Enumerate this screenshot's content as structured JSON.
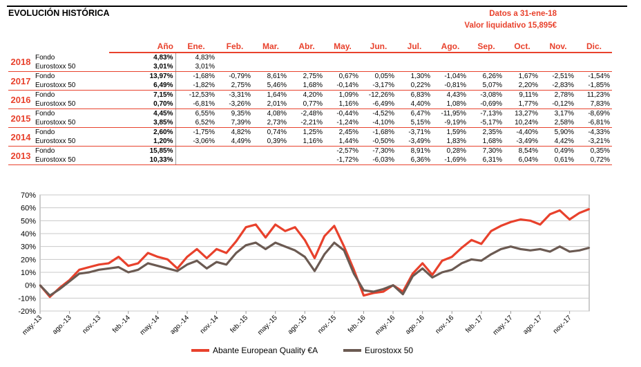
{
  "header": {
    "title": "EVOLUCIÓN HISTÓRICA",
    "date_line": "Datos a 31-ene-18",
    "value_line": "Valor liquidativo 15,895€"
  },
  "table": {
    "columns": [
      "Año",
      "Ene.",
      "Feb.",
      "Mar.",
      "Abr.",
      "May.",
      "Jun.",
      "Jul.",
      "Ago.",
      "Sep.",
      "Oct.",
      "Nov.",
      "Dic."
    ],
    "years": [
      {
        "year": "2018",
        "rows": [
          {
            "label": "Fondo",
            "ano": "4,83%",
            "months": [
              "4,83%",
              "",
              "",
              "",
              "",
              "",
              "",
              "",
              "",
              "",
              "",
              ""
            ]
          },
          {
            "label": "Eurostoxx 50",
            "ano": "3,01%",
            "months": [
              "3,01%",
              "",
              "",
              "",
              "",
              "",
              "",
              "",
              "",
              "",
              "",
              ""
            ]
          }
        ]
      },
      {
        "year": "2017",
        "rows": [
          {
            "label": "Fondo",
            "ano": "13,97%",
            "months": [
              "-1,68%",
              "-0,79%",
              "8,61%",
              "2,75%",
              "0,67%",
              "0,05%",
              "1,30%",
              "-1,04%",
              "6,26%",
              "1,67%",
              "-2,51%",
              "-1,54%"
            ]
          },
          {
            "label": "Eurostoxx 50",
            "ano": "6,49%",
            "months": [
              "-1,82%",
              "2,75%",
              "5,46%",
              "1,68%",
              "-0,14%",
              "-3,17%",
              "0,22%",
              "-0,81%",
              "5,07%",
              "2,20%",
              "-2,83%",
              "-1,85%"
            ]
          }
        ]
      },
      {
        "year": "2016",
        "rows": [
          {
            "label": "Fondo",
            "ano": "7,15%",
            "months": [
              "-12,53%",
              "-3,31%",
              "1,64%",
              "4,20%",
              "1,09%",
              "-12,26%",
              "6,83%",
              "4,43%",
              "-3,08%",
              "9,11%",
              "2,78%",
              "11,23%"
            ]
          },
          {
            "label": "Eurostoxx 50",
            "ano": "0,70%",
            "months": [
              "-6,81%",
              "-3,26%",
              "2,01%",
              "0,77%",
              "1,16%",
              "-6,49%",
              "4,40%",
              "1,08%",
              "-0,69%",
              "1,77%",
              "-0,12%",
              "7,83%"
            ]
          }
        ]
      },
      {
        "year": "2015",
        "rows": [
          {
            "label": "Fondo",
            "ano": "4,45%",
            "months": [
              "6,55%",
              "9,35%",
              "4,08%",
              "-2,48%",
              "-0,44%",
              "-4,52%",
              "6,47%",
              "-11,95%",
              "-7,13%",
              "13,27%",
              "3,17%",
              "-8,69%"
            ]
          },
          {
            "label": "Eurostoxx 50",
            "ano": "3,85%",
            "months": [
              "6,52%",
              "7,39%",
              "2,73%",
              "-2,21%",
              "-1,24%",
              "-4,10%",
              "5,15%",
              "-9,19%",
              "-5,17%",
              "10,24%",
              "2,58%",
              "-6,81%"
            ]
          }
        ]
      },
      {
        "year": "2014",
        "rows": [
          {
            "label": "Fondo",
            "ano": "2,60%",
            "months": [
              "-1,75%",
              "4,82%",
              "0,74%",
              "1,25%",
              "2,45%",
              "-1,68%",
              "-3,71%",
              "1,59%",
              "2,35%",
              "-4,40%",
              "5,90%",
              "-4,33%"
            ]
          },
          {
            "label": "Eurostoxx 50",
            "ano": "1,20%",
            "months": [
              "-3,06%",
              "4,49%",
              "0,39%",
              "1,16%",
              "1,44%",
              "-0,50%",
              "-3,49%",
              "1,83%",
              "1,68%",
              "-3,49%",
              "4,42%",
              "-3,21%"
            ]
          }
        ]
      },
      {
        "year": "2013",
        "rows": [
          {
            "label": "Fondo",
            "ano": "15,85%",
            "months": [
              "",
              "",
              "",
              "",
              "-2,57%",
              "-7,30%",
              "8,91%",
              "0,28%",
              "7,30%",
              "8,54%",
              "0,49%",
              "0,35%"
            ]
          },
          {
            "label": "Eurostoxx 50",
            "ano": "10,33%",
            "months": [
              "",
              "",
              "",
              "",
              "-1,72%",
              "-6,03%",
              "6,36%",
              "-1,69%",
              "6,31%",
              "6,04%",
              "0,61%",
              "0,72%"
            ]
          }
        ]
      }
    ]
  },
  "chart_data": {
    "type": "line",
    "ylim": [
      -20,
      70
    ],
    "yticks": [
      "-20%",
      "-10%",
      "0%",
      "10%",
      "20%",
      "30%",
      "40%",
      "50%",
      "60%",
      "70%"
    ],
    "xticks": [
      "may.-13",
      "ago.-13",
      "nov.-13",
      "feb.-14",
      "may.-14",
      "ago.-14",
      "nov.-14",
      "feb.-15",
      "may.-15",
      "ago.-15",
      "nov.-15",
      "feb.-16",
      "may.-16",
      "ago.-16",
      "nov.-16",
      "feb.-17",
      "may.-17",
      "ago.-17",
      "nov.-17"
    ],
    "x": [
      "may.-13",
      "jun.-13",
      "jul.-13",
      "ago.-13",
      "sep.-13",
      "oct.-13",
      "nov.-13",
      "dic.-13",
      "ene.-14",
      "feb.-14",
      "mar.-14",
      "abr.-14",
      "may.-14",
      "jun.-14",
      "jul.-14",
      "ago.-14",
      "sep.-14",
      "oct.-14",
      "nov.-14",
      "dic.-14",
      "ene.-15",
      "feb.-15",
      "mar.-15",
      "abr.-15",
      "may.-15",
      "jun.-15",
      "jul.-15",
      "ago.-15",
      "sep.-15",
      "oct.-15",
      "nov.-15",
      "dic.-15",
      "ene.-16",
      "feb.-16",
      "mar.-16",
      "abr.-16",
      "may.-16",
      "jun.-16",
      "jul.-16",
      "ago.-16",
      "sep.-16",
      "oct.-16",
      "nov.-16",
      "dic.-16",
      "ene.-17",
      "feb.-17",
      "mar.-17",
      "abr.-17",
      "may.-17",
      "jun.-17",
      "jul.-17",
      "ago.-17",
      "sep.-17",
      "oct.-17",
      "nov.-17",
      "dic.-17",
      "ene.-18"
    ],
    "grid": true,
    "legend_position": "bottom",
    "series": [
      {
        "name": "Abante European Quality €A",
        "color": "#e8412c",
        "values": [
          0,
          -9,
          -2,
          4,
          12,
          14,
          16,
          17,
          22,
          15,
          17,
          25,
          22,
          20,
          13,
          22,
          28,
          21,
          28,
          25,
          34,
          45,
          47,
          37,
          47,
          42,
          45,
          35,
          21,
          38,
          46,
          30,
          12,
          -8,
          -6,
          -5,
          0,
          -5,
          9,
          17,
          8,
          19,
          22,
          29,
          35,
          32,
          42,
          46,
          49,
          51,
          50,
          47,
          55,
          58,
          51,
          56,
          59
        ]
      },
      {
        "name": "Eurostoxx 50",
        "color": "#6b5a52",
        "values": [
          0,
          -8,
          -3,
          3,
          9,
          10,
          12,
          13,
          14,
          10,
          12,
          17,
          15,
          13,
          11,
          16,
          19,
          13,
          18,
          16,
          25,
          31,
          33,
          28,
          33,
          30,
          27,
          22,
          11,
          24,
          33,
          27,
          9,
          -4,
          -5,
          -3,
          0,
          -7,
          7,
          13,
          6,
          10,
          12,
          17,
          20,
          19,
          24,
          28,
          30,
          28,
          27,
          28,
          26,
          30,
          26,
          27,
          29
        ]
      }
    ]
  }
}
